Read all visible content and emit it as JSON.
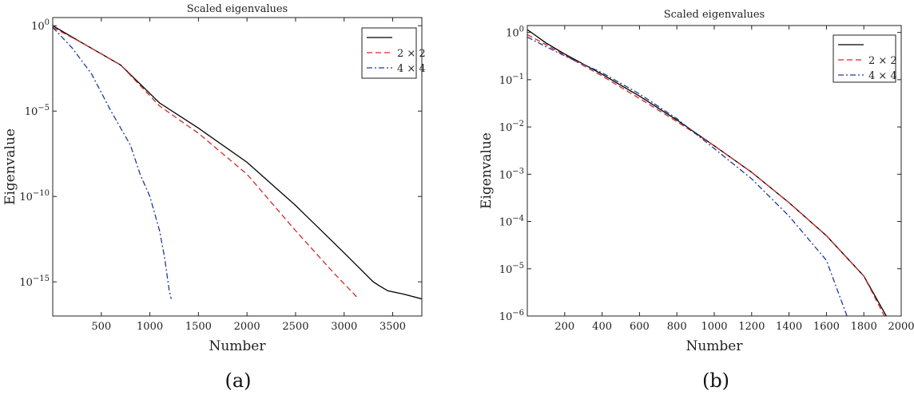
{
  "chart_data": [
    {
      "type": "line",
      "title": "Scaled eigenvalues",
      "xlabel": "Number",
      "ylabel": "Eigenvalue",
      "panel_label": "(a)",
      "yscale": "log",
      "xlim": [
        0,
        3800
      ],
      "ylim": [
        1e-17,
        3
      ],
      "x_ticks": [
        500,
        1000,
        1500,
        2000,
        2500,
        3000,
        3500
      ],
      "x_tick_labels": [
        "500",
        "1000",
        "1500",
        "2000",
        "2500",
        "3000",
        "3500"
      ],
      "y_ticks": [
        1e-15,
        1e-10,
        1e-05,
        1
      ],
      "y_tick_labels": [
        {
          "base": "10",
          "exp": "−15"
        },
        {
          "base": "10",
          "exp": "−10"
        },
        {
          "base": "10",
          "exp": "−5"
        },
        {
          "base": "10",
          "exp": "0"
        }
      ],
      "legend_position": "top-right",
      "series": [
        {
          "name": "",
          "color": "#000000",
          "dash": "solid",
          "x": [
            0,
            300,
            700,
            1100,
            1500,
            2000,
            2500,
            3000,
            3300,
            3360,
            3450,
            3600,
            3800
          ],
          "y": [
            1,
            0.1,
            0.005,
            3e-05,
            1e-06,
            1e-08,
            3e-11,
            5e-14,
            1e-15,
            6e-16,
            3e-16,
            2e-16,
            1e-16
          ]
        },
        {
          "name": "2 × 2",
          "color": "#d62728",
          "dash": "dashed",
          "x": [
            0,
            300,
            700,
            1100,
            1500,
            2000,
            2500,
            2900,
            3150
          ],
          "y": [
            0.8,
            0.1,
            0.005,
            2e-05,
            5e-07,
            2e-09,
            1e-12,
            3e-15,
            1e-16
          ]
        },
        {
          "name": "4 × 4",
          "color": "#1f3a93",
          "dash": "dashdot",
          "x": [
            0,
            200,
            400,
            600,
            800,
            900,
            1000,
            1100,
            1150,
            1200,
            1220
          ],
          "y": [
            0.8,
            0.05,
            0.0015,
            1e-05,
            1e-07,
            2e-09,
            1e-10,
            1e-12,
            3e-14,
            3e-16,
            1e-16
          ]
        }
      ]
    },
    {
      "type": "line",
      "title": "Scaled eigenvalues",
      "xlabel": "Number",
      "ylabel": "Eigenvalue",
      "panel_label": "(b)",
      "yscale": "log",
      "xlim": [
        0,
        2000
      ],
      "ylim": [
        1e-06,
        1.4
      ],
      "x_ticks": [
        200,
        400,
        600,
        800,
        1000,
        1200,
        1400,
        1600,
        1800,
        2000
      ],
      "x_tick_labels": [
        "200",
        "400",
        "600",
        "800",
        "1000",
        "1200",
        "1400",
        "1600",
        "1800",
        "2000"
      ],
      "y_ticks": [
        1e-06,
        1e-05,
        0.0001,
        0.001,
        0.01,
        0.1,
        1
      ],
      "y_tick_labels": [
        {
          "base": "10",
          "exp": "−6"
        },
        {
          "base": "10",
          "exp": "−5"
        },
        {
          "base": "10",
          "exp": "−4"
        },
        {
          "base": "10",
          "exp": "−3"
        },
        {
          "base": "10",
          "exp": "−2"
        },
        {
          "base": "10",
          "exp": "−1"
        },
        {
          "base": "10",
          "exp": "0"
        }
      ],
      "legend_position": "top-right",
      "series": [
        {
          "name": "",
          "color": "#000000",
          "dash": "solid",
          "x": [
            0,
            100,
            200,
            400,
            600,
            800,
            1000,
            1200,
            1400,
            1600,
            1800,
            1920
          ],
          "y": [
            1.15,
            0.6,
            0.35,
            0.13,
            0.045,
            0.014,
            0.004,
            0.0011,
            0.00025,
            5e-05,
            7e-06,
            1e-06
          ]
        },
        {
          "name": "2 × 2",
          "color": "#d62728",
          "dash": "dashed",
          "x": [
            0,
            100,
            200,
            400,
            600,
            800,
            1000,
            1200,
            1400,
            1600,
            1800,
            1910
          ],
          "y": [
            0.9,
            0.55,
            0.33,
            0.12,
            0.04,
            0.013,
            0.004,
            0.0011,
            0.00025,
            5e-05,
            7e-06,
            1e-06
          ]
        },
        {
          "name": "4 × 4",
          "color": "#1f3a93",
          "dash": "dashdot",
          "x": [
            0,
            100,
            200,
            400,
            600,
            800,
            1000,
            1200,
            1400,
            1600,
            1710
          ],
          "y": [
            0.8,
            0.5,
            0.32,
            0.14,
            0.05,
            0.015,
            0.0035,
            0.0008,
            0.00013,
            1.5e-05,
            1e-06
          ]
        }
      ]
    }
  ]
}
